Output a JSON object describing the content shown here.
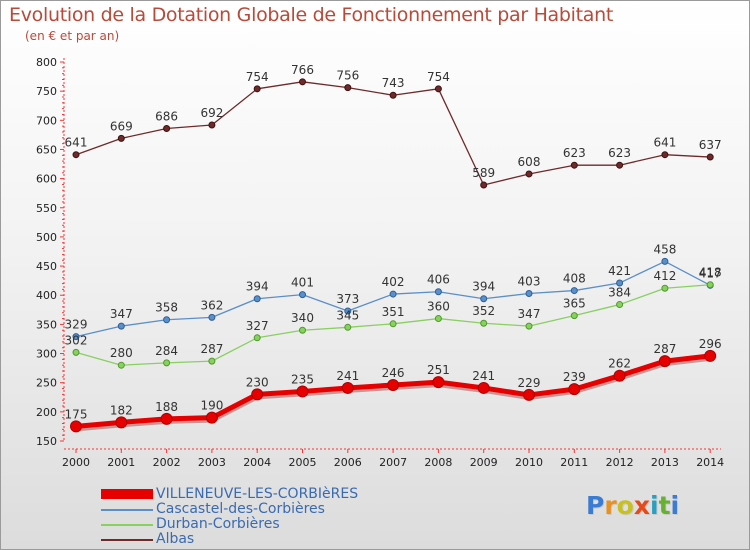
{
  "header": {
    "title": "Evolution de la Dotation Globale de Fonctionnement par Habitant",
    "subtitle": "(en € et par an)"
  },
  "logo": {
    "text": "Proxiti"
  },
  "colors": {
    "villeneuve": "#e60000",
    "cascastel": "#5a8fc8",
    "durban": "#88d060",
    "albas": "#6e2a2a"
  },
  "chart_data": {
    "type": "line",
    "title": "Evolution de la Dotation Globale de Fonctionnement par Habitant",
    "ylabel": "(en € et par an)",
    "xlabel": "",
    "ylim": [
      150,
      800
    ],
    "yticks": [
      150,
      200,
      250,
      300,
      350,
      400,
      450,
      500,
      550,
      600,
      650,
      700,
      750,
      800
    ],
    "x": [
      "2000",
      "2001",
      "2002",
      "2003",
      "2004",
      "2005",
      "2006",
      "2007",
      "2008",
      "2009",
      "2010",
      "2011",
      "2012",
      "2013",
      "2014"
    ],
    "grid": false,
    "legend": "bottom-left",
    "series": [
      {
        "name": "VILLENEUVE-LES-CORBIèRES",
        "key": "villeneuve",
        "values": [
          175,
          182,
          188,
          190,
          230,
          235,
          241,
          246,
          251,
          241,
          229,
          239,
          262,
          287,
          296
        ]
      },
      {
        "name": "Cascastel-des-Corbières",
        "key": "cascastel",
        "values": [
          329,
          347,
          358,
          362,
          394,
          401,
          373,
          402,
          406,
          394,
          403,
          408,
          421,
          458,
          417
        ]
      },
      {
        "name": "Durban-Corbières",
        "key": "durban",
        "values": [
          302,
          280,
          284,
          287,
          327,
          340,
          345,
          351,
          360,
          352,
          347,
          365,
          384,
          412,
          418
        ]
      },
      {
        "name": "Albas",
        "key": "albas",
        "values": [
          641,
          669,
          686,
          692,
          754,
          766,
          756,
          743,
          754,
          589,
          608,
          623,
          623,
          641,
          637
        ]
      }
    ]
  }
}
